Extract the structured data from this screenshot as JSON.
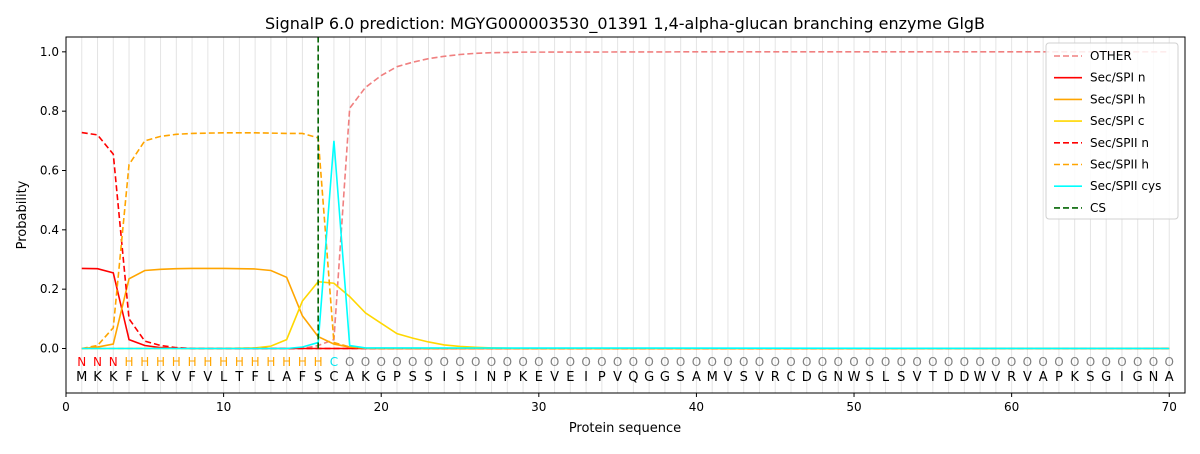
{
  "chart_data": {
    "type": "line",
    "title": "SignalP 6.0 prediction: MGYG000003530_01391 1,4-alpha-glucan branching enzyme GlgB",
    "xlabel": "Protein sequence",
    "ylabel": "Probability",
    "xlim": [
      0,
      71
    ],
    "ylim": [
      -0.15,
      1.05
    ],
    "xticks": [
      0,
      10,
      20,
      30,
      40,
      50,
      60,
      70
    ],
    "yticks": [
      0.0,
      0.2,
      0.4,
      0.6,
      0.8,
      1.0
    ],
    "ytick_labels": [
      "0.0",
      "0.2",
      "0.4",
      "0.6",
      "0.8",
      "1.0"
    ],
    "grid": "vertical lines at each residue",
    "legend_position": "top-right",
    "sequence": [
      "M",
      "K",
      "K",
      "F",
      "L",
      "K",
      "V",
      "F",
      "V",
      "L",
      "T",
      "F",
      "L",
      "A",
      "F",
      "S",
      "C",
      "A",
      "K",
      "G",
      "P",
      "S",
      "S",
      "I",
      "S",
      "I",
      "N",
      "P",
      "K",
      "E",
      "V",
      "E",
      "I",
      "P",
      "V",
      "Q",
      "G",
      "G",
      "S",
      "A",
      "M",
      "V",
      "S",
      "V",
      "R",
      "C",
      "D",
      "G",
      "N",
      "W",
      "S",
      "L",
      "S",
      "V",
      "T",
      "D",
      "D",
      "W",
      "V",
      "R",
      "V",
      "A",
      "P",
      "K",
      "S",
      "G",
      "I",
      "G",
      "N",
      "A"
    ],
    "region_labels": [
      "N",
      "N",
      "N",
      "H",
      "H",
      "H",
      "H",
      "H",
      "H",
      "H",
      "H",
      "H",
      "H",
      "H",
      "H",
      "H",
      "C",
      "O",
      "O",
      "O",
      "O",
      "O",
      "O",
      "O",
      "O",
      "O",
      "O",
      "O",
      "O",
      "O",
      "O",
      "O",
      "O",
      "O",
      "O",
      "O",
      "O",
      "O",
      "O",
      "O",
      "O",
      "O",
      "O",
      "O",
      "O",
      "O",
      "O",
      "O",
      "O",
      "O",
      "O",
      "O",
      "O",
      "O",
      "O",
      "O",
      "O",
      "O",
      "O",
      "O",
      "O",
      "O",
      "O",
      "O",
      "O",
      "O",
      "O",
      "O",
      "O",
      "O"
    ],
    "region_colors": {
      "N": "#ff0000",
      "H": "#ffa500",
      "C": "#00e5ee",
      "O": "#808080"
    },
    "cleavage_site": 16,
    "series": [
      {
        "name": "OTHER",
        "color": "#f08080",
        "dash": "dashed",
        "x": [
          1,
          2,
          3,
          4,
          5,
          6,
          7,
          8,
          9,
          10,
          11,
          12,
          13,
          14,
          15,
          16,
          17,
          18,
          19,
          20,
          21,
          22,
          23,
          24,
          25,
          26,
          27,
          28,
          29,
          30,
          40,
          50,
          60,
          70
        ],
        "values": [
          0,
          0,
          0,
          0,
          0,
          0,
          0,
          0,
          0,
          0,
          0,
          0,
          0,
          0,
          0,
          0.01,
          0.03,
          0.81,
          0.88,
          0.92,
          0.95,
          0.965,
          0.977,
          0.985,
          0.991,
          0.995,
          0.997,
          0.998,
          0.999,
          0.999,
          1.0,
          1.0,
          1.0,
          1.0
        ]
      },
      {
        "name": "Sec/SPI n",
        "color": "#ff0000",
        "dash": "solid",
        "x": [
          1,
          2,
          3,
          4,
          5,
          6,
          7,
          8,
          16,
          17,
          18,
          70
        ],
        "values": [
          0.27,
          0.269,
          0.255,
          0.03,
          0.01,
          0.003,
          0.001,
          0,
          0,
          0,
          0,
          0
        ]
      },
      {
        "name": "Sec/SPI h",
        "color": "#ffa500",
        "dash": "solid",
        "x": [
          1,
          2,
          3,
          4,
          5,
          6,
          7,
          8,
          9,
          10,
          11,
          12,
          13,
          14,
          15,
          16,
          17,
          18,
          19,
          20,
          70
        ],
        "values": [
          0,
          0.005,
          0.015,
          0.235,
          0.263,
          0.267,
          0.269,
          0.27,
          0.27,
          0.27,
          0.269,
          0.268,
          0.263,
          0.24,
          0.11,
          0.04,
          0.015,
          0.005,
          0.001,
          0,
          0
        ]
      },
      {
        "name": "Sec/SPI c",
        "color": "#ffd700",
        "dash": "solid",
        "x": [
          1,
          10,
          11,
          12,
          13,
          14,
          15,
          16,
          17,
          18,
          19,
          20,
          21,
          22,
          23,
          24,
          25,
          26,
          27,
          28,
          29,
          30,
          70
        ],
        "values": [
          0,
          0,
          0.001,
          0.002,
          0.008,
          0.03,
          0.16,
          0.225,
          0.22,
          0.175,
          0.12,
          0.085,
          0.05,
          0.035,
          0.022,
          0.012,
          0.007,
          0.004,
          0.002,
          0.001,
          0,
          0,
          0
        ]
      },
      {
        "name": "Sec/SPII n",
        "color": "#ff0000",
        "dash": "dashed",
        "x": [
          1,
          2,
          3,
          4,
          5,
          6,
          7,
          8,
          16,
          17,
          70
        ],
        "values": [
          0.728,
          0.72,
          0.655,
          0.1,
          0.025,
          0.01,
          0.003,
          0,
          0,
          0,
          0
        ]
      },
      {
        "name": "Sec/SPII h",
        "color": "#ffa500",
        "dash": "dashed",
        "x": [
          1,
          2,
          3,
          4,
          5,
          6,
          7,
          8,
          9,
          10,
          11,
          12,
          13,
          14,
          15,
          16,
          17,
          18,
          19,
          20,
          70
        ],
        "values": [
          0,
          0.01,
          0.07,
          0.62,
          0.7,
          0.715,
          0.722,
          0.725,
          0.726,
          0.727,
          0.727,
          0.727,
          0.726,
          0.725,
          0.725,
          0.71,
          0.02,
          0.005,
          0.001,
          0,
          0
        ]
      },
      {
        "name": "Sec/SPII cys",
        "color": "#00ffff",
        "dash": "solid",
        "x": [
          1,
          14,
          15,
          16,
          17,
          18,
          19,
          70
        ],
        "values": [
          0,
          0,
          0.005,
          0.02,
          0.7,
          0.01,
          0.002,
          0
        ]
      },
      {
        "name": "CS",
        "color": "#006400",
        "dash": "dashed",
        "x": [
          16,
          16
        ],
        "values": [
          0,
          1.05
        ]
      }
    ]
  }
}
